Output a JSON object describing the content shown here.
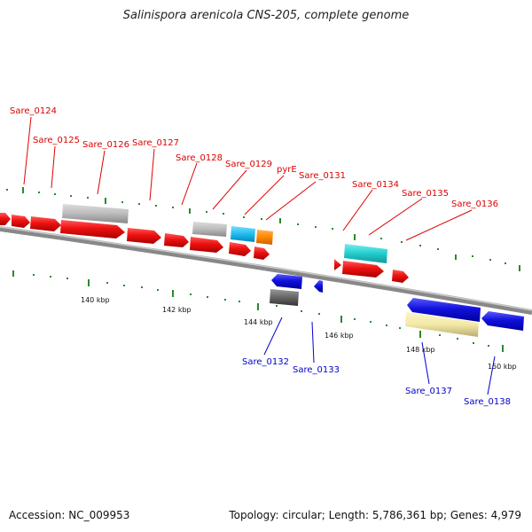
{
  "title": "Salinispora arenicola CNS-205, complete genome",
  "footer": {
    "accession": "Accession: NC_009953",
    "summary": "Topology: circular; Length: 5,786,361 bp; Genes: 4,979"
  },
  "colors": {
    "forward_cds": "#ee1111",
    "reverse_cds": "#1111dd",
    "gene_bar": "#bbbbbb",
    "rna_bar": "#777777",
    "cyan_feature": "#22bbee",
    "orange_feature": "#ff8800",
    "teal_feature": "#22cccc",
    "khaki_feature": "#f3e9a6",
    "backbone": "#888888",
    "tick": "#2a8a2a",
    "top_label": "#dd0000",
    "bottom_label": "#0000cc"
  },
  "kbp_labels": [
    "140 kbp",
    "142 kbp",
    "144 kbp",
    "146 kbp",
    "148 kbp",
    "150 kbp"
  ],
  "top_genes": [
    "Sare_0124",
    "Sare_0125",
    "Sare_0126",
    "Sare_0127",
    "Sare_0128",
    "Sare_0129",
    "pyrE",
    "Sare_0131",
    "Sare_0134",
    "Sare_0135",
    "Sare_0136"
  ],
  "bottom_genes": [
    "Sare_0132",
    "Sare_0133",
    "Sare_0137",
    "Sare_0138"
  ]
}
